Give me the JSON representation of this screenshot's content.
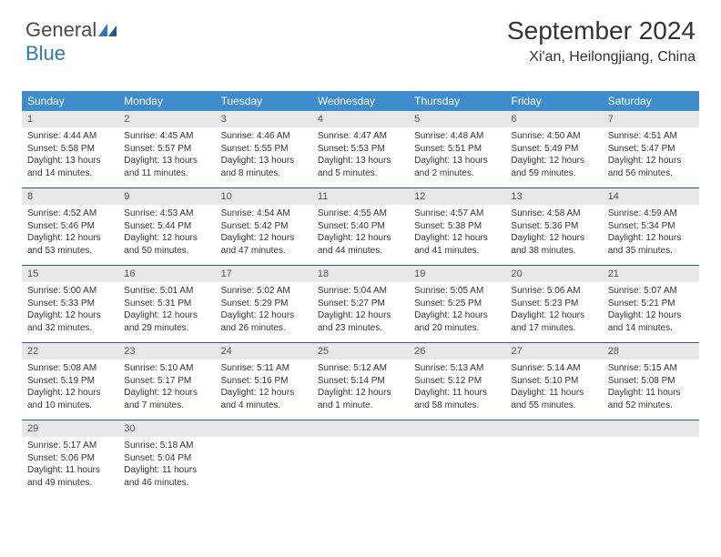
{
  "brand": {
    "part1": "General",
    "part2": "Blue"
  },
  "title": "September 2024",
  "location": "Xi'an, Heilongjiang, China",
  "colors": {
    "header_bg": "#3e8ccc",
    "header_text": "#ffffff",
    "daynum_bg": "#e8e8e8",
    "week_border": "#2a5a8a",
    "body_text": "#333333",
    "logo_gray": "#4a4a4a",
    "logo_blue": "#2a7ab9"
  },
  "typography": {
    "title_fontsize": 28,
    "location_fontsize": 16,
    "dayheader_fontsize": 12,
    "daynum_fontsize": 11,
    "details_fontsize": 10
  },
  "day_names": [
    "Sunday",
    "Monday",
    "Tuesday",
    "Wednesday",
    "Thursday",
    "Friday",
    "Saturday"
  ],
  "weeks": [
    [
      {
        "n": "1",
        "sr": "Sunrise: 4:44 AM",
        "ss": "Sunset: 5:58 PM",
        "d1": "Daylight: 13 hours",
        "d2": "and 14 minutes."
      },
      {
        "n": "2",
        "sr": "Sunrise: 4:45 AM",
        "ss": "Sunset: 5:57 PM",
        "d1": "Daylight: 13 hours",
        "d2": "and 11 minutes."
      },
      {
        "n": "3",
        "sr": "Sunrise: 4:46 AM",
        "ss": "Sunset: 5:55 PM",
        "d1": "Daylight: 13 hours",
        "d2": "and 8 minutes."
      },
      {
        "n": "4",
        "sr": "Sunrise: 4:47 AM",
        "ss": "Sunset: 5:53 PM",
        "d1": "Daylight: 13 hours",
        "d2": "and 5 minutes."
      },
      {
        "n": "5",
        "sr": "Sunrise: 4:48 AM",
        "ss": "Sunset: 5:51 PM",
        "d1": "Daylight: 13 hours",
        "d2": "and 2 minutes."
      },
      {
        "n": "6",
        "sr": "Sunrise: 4:50 AM",
        "ss": "Sunset: 5:49 PM",
        "d1": "Daylight: 12 hours",
        "d2": "and 59 minutes."
      },
      {
        "n": "7",
        "sr": "Sunrise: 4:51 AM",
        "ss": "Sunset: 5:47 PM",
        "d1": "Daylight: 12 hours",
        "d2": "and 56 minutes."
      }
    ],
    [
      {
        "n": "8",
        "sr": "Sunrise: 4:52 AM",
        "ss": "Sunset: 5:46 PM",
        "d1": "Daylight: 12 hours",
        "d2": "and 53 minutes."
      },
      {
        "n": "9",
        "sr": "Sunrise: 4:53 AM",
        "ss": "Sunset: 5:44 PM",
        "d1": "Daylight: 12 hours",
        "d2": "and 50 minutes."
      },
      {
        "n": "10",
        "sr": "Sunrise: 4:54 AM",
        "ss": "Sunset: 5:42 PM",
        "d1": "Daylight: 12 hours",
        "d2": "and 47 minutes."
      },
      {
        "n": "11",
        "sr": "Sunrise: 4:55 AM",
        "ss": "Sunset: 5:40 PM",
        "d1": "Daylight: 12 hours",
        "d2": "and 44 minutes."
      },
      {
        "n": "12",
        "sr": "Sunrise: 4:57 AM",
        "ss": "Sunset: 5:38 PM",
        "d1": "Daylight: 12 hours",
        "d2": "and 41 minutes."
      },
      {
        "n": "13",
        "sr": "Sunrise: 4:58 AM",
        "ss": "Sunset: 5:36 PM",
        "d1": "Daylight: 12 hours",
        "d2": "and 38 minutes."
      },
      {
        "n": "14",
        "sr": "Sunrise: 4:59 AM",
        "ss": "Sunset: 5:34 PM",
        "d1": "Daylight: 12 hours",
        "d2": "and 35 minutes."
      }
    ],
    [
      {
        "n": "15",
        "sr": "Sunrise: 5:00 AM",
        "ss": "Sunset: 5:33 PM",
        "d1": "Daylight: 12 hours",
        "d2": "and 32 minutes."
      },
      {
        "n": "16",
        "sr": "Sunrise: 5:01 AM",
        "ss": "Sunset: 5:31 PM",
        "d1": "Daylight: 12 hours",
        "d2": "and 29 minutes."
      },
      {
        "n": "17",
        "sr": "Sunrise: 5:02 AM",
        "ss": "Sunset: 5:29 PM",
        "d1": "Daylight: 12 hours",
        "d2": "and 26 minutes."
      },
      {
        "n": "18",
        "sr": "Sunrise: 5:04 AM",
        "ss": "Sunset: 5:27 PM",
        "d1": "Daylight: 12 hours",
        "d2": "and 23 minutes."
      },
      {
        "n": "19",
        "sr": "Sunrise: 5:05 AM",
        "ss": "Sunset: 5:25 PM",
        "d1": "Daylight: 12 hours",
        "d2": "and 20 minutes."
      },
      {
        "n": "20",
        "sr": "Sunrise: 5:06 AM",
        "ss": "Sunset: 5:23 PM",
        "d1": "Daylight: 12 hours",
        "d2": "and 17 minutes."
      },
      {
        "n": "21",
        "sr": "Sunrise: 5:07 AM",
        "ss": "Sunset: 5:21 PM",
        "d1": "Daylight: 12 hours",
        "d2": "and 14 minutes."
      }
    ],
    [
      {
        "n": "22",
        "sr": "Sunrise: 5:08 AM",
        "ss": "Sunset: 5:19 PM",
        "d1": "Daylight: 12 hours",
        "d2": "and 10 minutes."
      },
      {
        "n": "23",
        "sr": "Sunrise: 5:10 AM",
        "ss": "Sunset: 5:17 PM",
        "d1": "Daylight: 12 hours",
        "d2": "and 7 minutes."
      },
      {
        "n": "24",
        "sr": "Sunrise: 5:11 AM",
        "ss": "Sunset: 5:16 PM",
        "d1": "Daylight: 12 hours",
        "d2": "and 4 minutes."
      },
      {
        "n": "25",
        "sr": "Sunrise: 5:12 AM",
        "ss": "Sunset: 5:14 PM",
        "d1": "Daylight: 12 hours",
        "d2": "and 1 minute."
      },
      {
        "n": "26",
        "sr": "Sunrise: 5:13 AM",
        "ss": "Sunset: 5:12 PM",
        "d1": "Daylight: 11 hours",
        "d2": "and 58 minutes."
      },
      {
        "n": "27",
        "sr": "Sunrise: 5:14 AM",
        "ss": "Sunset: 5:10 PM",
        "d1": "Daylight: 11 hours",
        "d2": "and 55 minutes."
      },
      {
        "n": "28",
        "sr": "Sunrise: 5:15 AM",
        "ss": "Sunset: 5:08 PM",
        "d1": "Daylight: 11 hours",
        "d2": "and 52 minutes."
      }
    ],
    [
      {
        "n": "29",
        "sr": "Sunrise: 5:17 AM",
        "ss": "Sunset: 5:06 PM",
        "d1": "Daylight: 11 hours",
        "d2": "and 49 minutes."
      },
      {
        "n": "30",
        "sr": "Sunrise: 5:18 AM",
        "ss": "Sunset: 5:04 PM",
        "d1": "Daylight: 11 hours",
        "d2": "and 46 minutes."
      },
      {
        "empty": true
      },
      {
        "empty": true
      },
      {
        "empty": true
      },
      {
        "empty": true
      },
      {
        "empty": true
      }
    ]
  ]
}
